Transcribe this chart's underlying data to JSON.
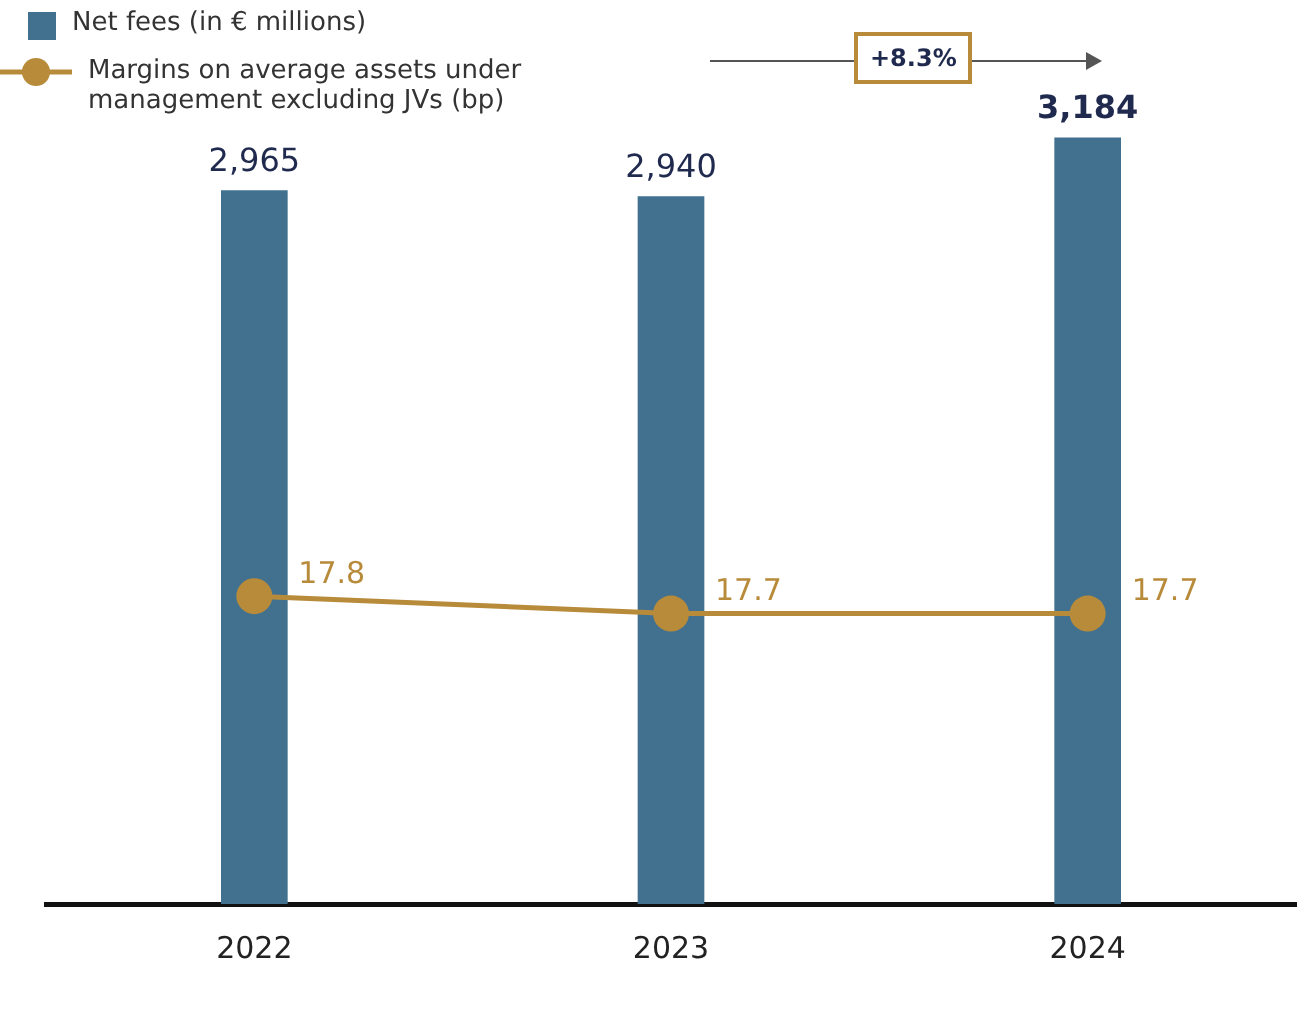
{
  "chart_data": {
    "type": "bar",
    "categories": [
      "2022",
      "2023",
      "2024"
    ],
    "series": [
      {
        "name": "Net fees (in € millions)",
        "color": "#41718f",
        "values": [
          2965,
          2940,
          3184
        ],
        "value_labels": [
          "2,965",
          "2,940",
          "3,184"
        ]
      },
      {
        "name": "Margins on average assets under management excluding JVs (bp)",
        "type": "line",
        "axis": "y2",
        "color": "#b88b3b",
        "values": [
          17.8,
          17.7,
          17.7
        ],
        "value_labels": [
          "17.8",
          "17.7",
          "17.7"
        ]
      }
    ],
    "tick_labels": "x",
    "legend": "top left",
    "marker": "circle",
    "annotations": [
      "+8.3%"
    ]
  }
}
